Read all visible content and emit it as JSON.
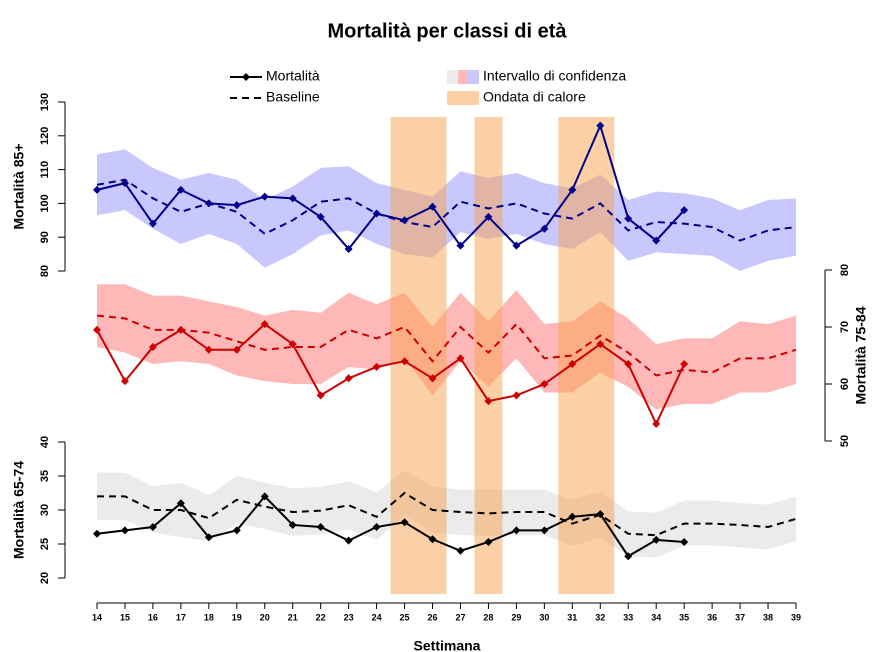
{
  "chart_data": {
    "type": "line",
    "title": "Mortalità per classi di età",
    "xlabel": "Settimana",
    "x": [
      14,
      15,
      16,
      17,
      18,
      19,
      20,
      21,
      22,
      23,
      24,
      25,
      26,
      27,
      28,
      29,
      30,
      31,
      32,
      33,
      34,
      35,
      36,
      37,
      38,
      39
    ],
    "xlim": [
      14,
      39
    ],
    "legend": {
      "mortality": "Mortalità",
      "baseline": "Baseline",
      "ci": "Intervallo di confidenza",
      "heatwave": "Ondata di calore"
    },
    "heatwave_color": "#f9a14e",
    "heatwaves": [
      [
        24.5,
        26.5
      ],
      [
        27.5,
        28.5
      ],
      [
        30.5,
        32.5
      ]
    ],
    "panels": [
      {
        "ylabel": "Mortalità 85+",
        "axis_side": "left",
        "ylim": [
          80,
          130
        ],
        "yticks": [
          80,
          90,
          100,
          110,
          120,
          130
        ],
        "color": "#00008b",
        "band_color": "#c8c8ff",
        "mortality": [
          104,
          106,
          94,
          104,
          100,
          99.5,
          102,
          101.5,
          96,
          86.5,
          97,
          95,
          99,
          87.5,
          96,
          87.5,
          92.5,
          104,
          123,
          95.5,
          89,
          98,
          null,
          null,
          null,
          null
        ],
        "baseline": [
          105.5,
          107,
          101.5,
          97.5,
          100,
          97.5,
          91,
          95,
          100.5,
          101.5,
          97,
          94.5,
          93,
          100.5,
          98.5,
          100,
          97,
          95.5,
          100,
          92,
          94.5,
          94,
          93,
          89,
          92,
          93
        ],
        "ci_upper": [
          114.5,
          116,
          110.5,
          107,
          109,
          107,
          101,
          105,
          110.5,
          111,
          106,
          104,
          102,
          109.5,
          107.5,
          109,
          106,
          104.5,
          108.5,
          101,
          103.5,
          103,
          101.5,
          98,
          101,
          101.5
        ],
        "ci_lower": [
          96.5,
          98,
          92.5,
          88,
          91,
          88,
          81,
          85,
          90.5,
          92,
          88,
          85,
          84,
          91.5,
          89.5,
          91,
          88,
          86.5,
          91.5,
          83,
          85.5,
          85,
          84.5,
          80,
          83,
          84.5
        ]
      },
      {
        "ylabel": "Mortalità 75-84",
        "axis_side": "right",
        "ylim": [
          50,
          80
        ],
        "yticks": [
          50,
          60,
          70,
          80
        ],
        "color": "#cc0000",
        "band_color": "#ffb8b8",
        "mortality": [
          69.5,
          60.5,
          66.5,
          69.5,
          66,
          66,
          70.5,
          67,
          58,
          61,
          63,
          64,
          61,
          64.5,
          57,
          58,
          60,
          63.5,
          67,
          63.5,
          53,
          63.5,
          null,
          null,
          null,
          null
        ],
        "baseline": [
          72,
          71.5,
          69.5,
          69.5,
          69,
          67.5,
          66,
          66.5,
          66.5,
          69.5,
          68,
          70,
          64,
          70,
          65.5,
          70.5,
          64.5,
          65,
          68.5,
          65.5,
          61.5,
          62.5,
          62,
          64.5,
          64.5,
          66
        ],
        "ci_upper": [
          77.5,
          77.5,
          75.5,
          75.5,
          74.5,
          73.5,
          72,
          73,
          72.5,
          76,
          74,
          76,
          70,
          76,
          71,
          76.5,
          70.5,
          71,
          74.5,
          71.5,
          67,
          68,
          68,
          71,
          70.5,
          72
        ],
        "ci_lower": [
          66.5,
          65.5,
          63.5,
          64,
          63.5,
          61.5,
          60.5,
          60,
          60,
          63,
          62.5,
          64.5,
          58,
          64,
          59.5,
          64.5,
          58.5,
          58.5,
          62,
          59.5,
          55.5,
          56.5,
          56.5,
          58.5,
          58.5,
          60
        ]
      },
      {
        "ylabel": "Mortalità 65-74",
        "axis_side": "left",
        "ylim": [
          20,
          40
        ],
        "yticks": [
          20,
          25,
          30,
          35,
          40
        ],
        "color": "#000000",
        "band_color": "#ebebeb",
        "mortality": [
          26.5,
          27,
          27.5,
          31,
          26,
          27,
          32,
          27.8,
          27.5,
          25.5,
          27.5,
          28.2,
          25.7,
          24,
          25.3,
          27,
          27,
          29,
          29.4,
          23.2,
          25.6,
          25.3,
          null,
          null,
          null,
          null
        ],
        "baseline": [
          32,
          32,
          30,
          30,
          28.8,
          31.5,
          30.5,
          29.7,
          29.9,
          30.7,
          29,
          32.5,
          30,
          29.7,
          29.5,
          29.7,
          29.7,
          28,
          29.3,
          26.5,
          26.3,
          28,
          28,
          27.8,
          27.5,
          28.7
        ],
        "ci_upper": [
          35.5,
          35.5,
          33.5,
          34,
          32.2,
          35,
          34,
          33.2,
          33.4,
          34.2,
          32.6,
          35.8,
          33.5,
          33,
          33,
          33,
          33,
          31.5,
          32.7,
          29.8,
          29.6,
          31.4,
          31.4,
          31,
          30.8,
          32
        ],
        "ci_lower": [
          28.5,
          28.5,
          26.7,
          26,
          25.4,
          28,
          27.2,
          26.2,
          26.4,
          27.2,
          25.6,
          29.2,
          26.7,
          26.3,
          26.2,
          26.3,
          26.3,
          24.7,
          25.9,
          23.2,
          23,
          24.8,
          24.8,
          24.5,
          24.2,
          25.4
        ]
      }
    ]
  }
}
